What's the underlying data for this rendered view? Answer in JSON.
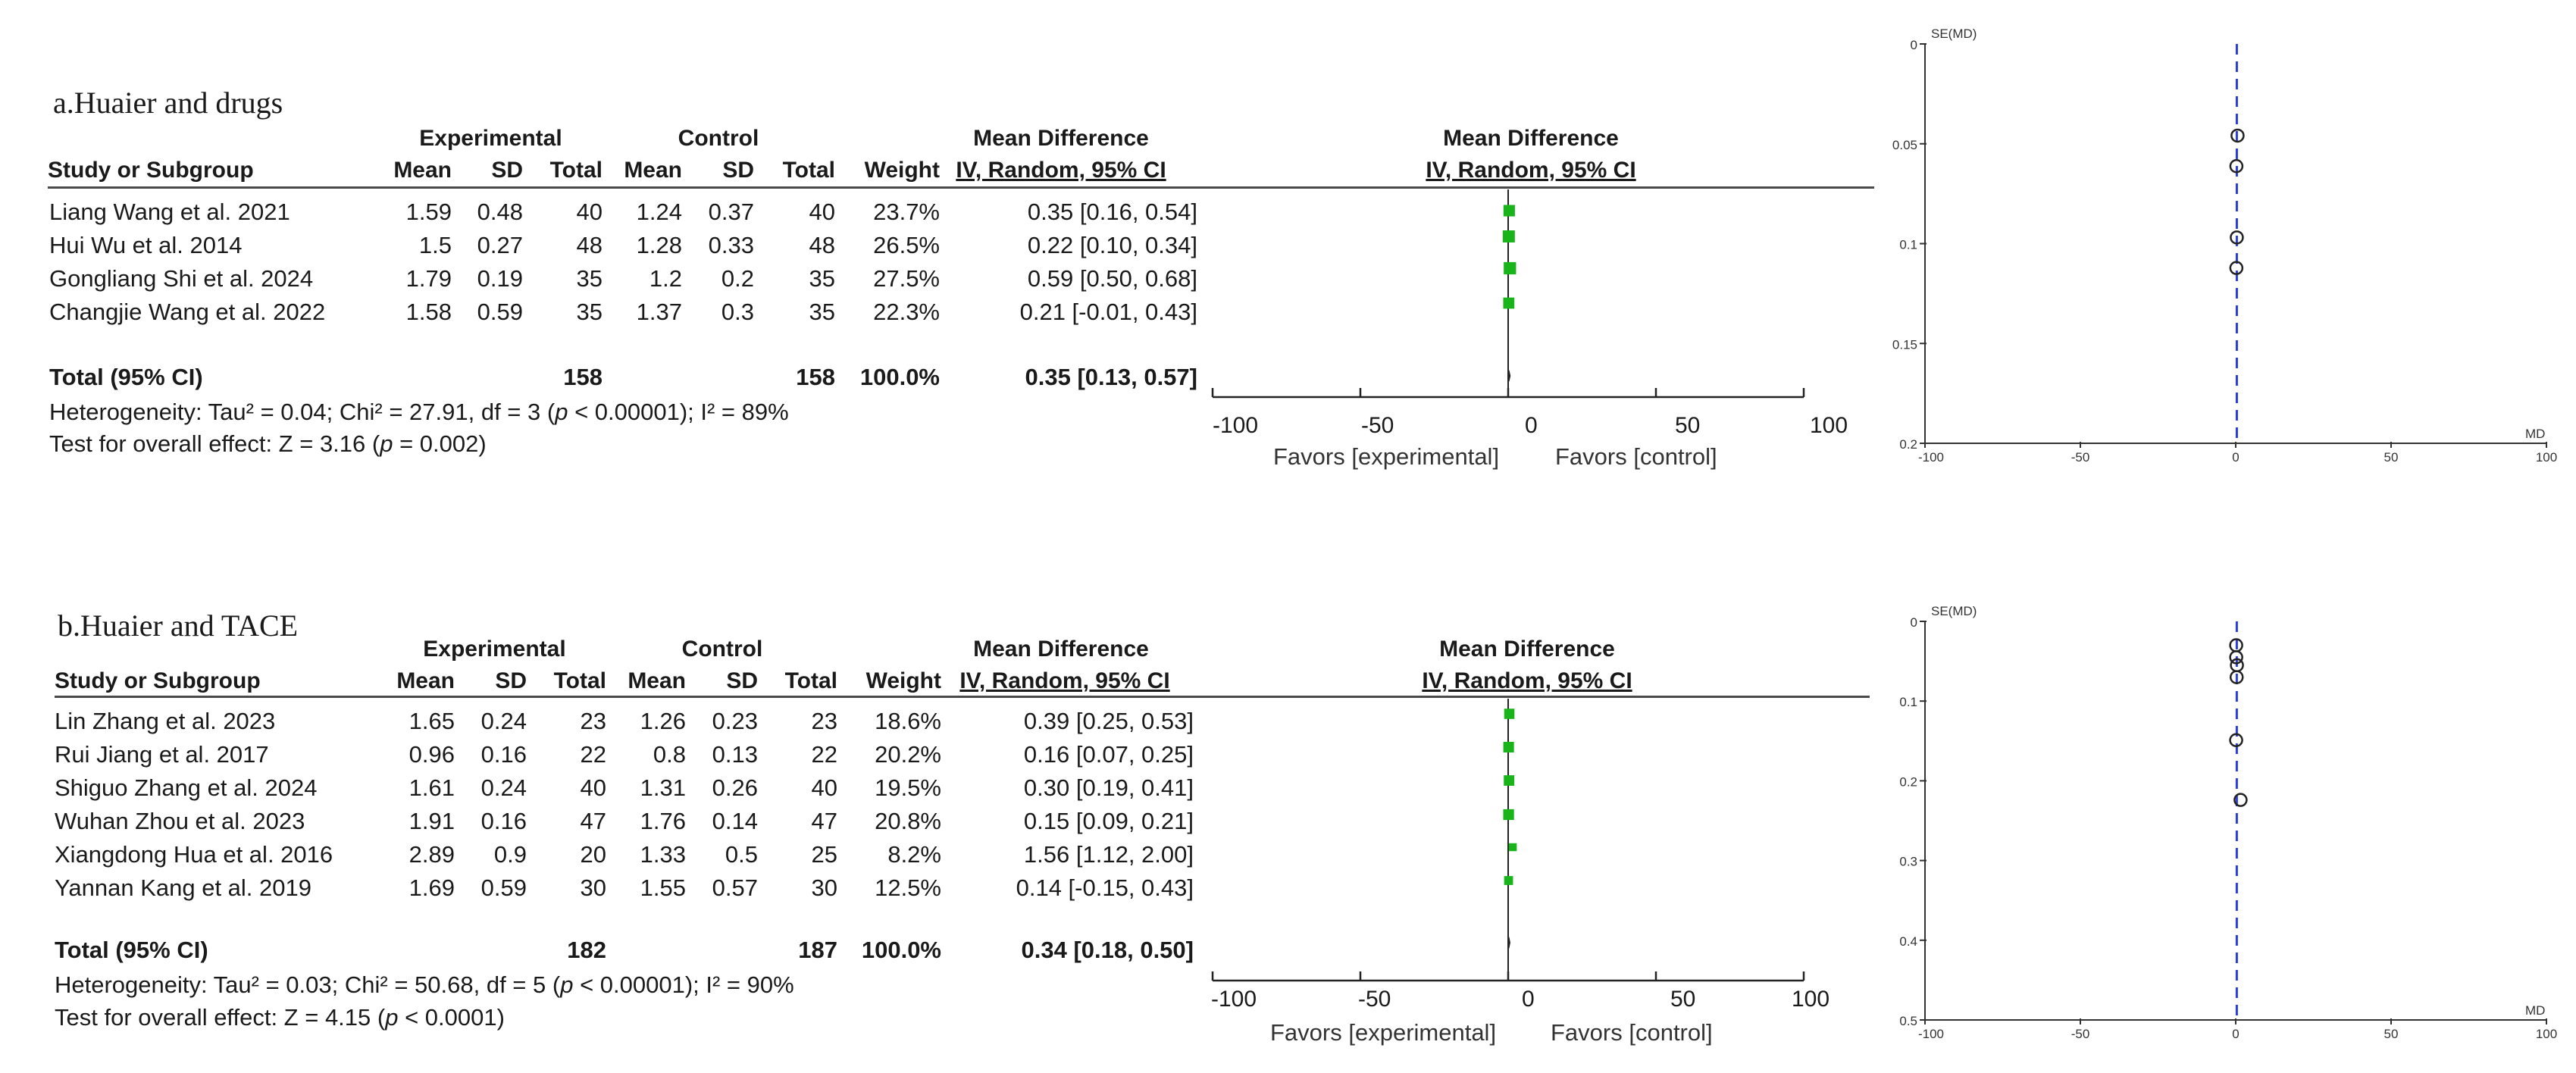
{
  "panels": [
    {
      "title": "a.Huaier and drugs",
      "headers": {
        "group_exp": "Experimental",
        "group_ctl": "Control",
        "group_md": "Mean Difference",
        "group_md_plot": "Mean Difference",
        "study": "Study or Subgroup",
        "mean": "Mean",
        "sd": "SD",
        "total": "Total",
        "weight": "Weight",
        "ci_method": "IV, Random, 95% CI",
        "ci_method_plot": "IV, Random, 95% CI"
      },
      "rows": [
        {
          "study": "Liang Wang et al. 2021",
          "e_mean": "1.59",
          "e_sd": "0.48",
          "e_total": "40",
          "c_mean": "1.24",
          "c_sd": "0.37",
          "c_total": "40",
          "weight": "23.7%",
          "ci": "0.35 [0.16, 0.54]"
        },
        {
          "study": "Hui Wu et al. 2014",
          "e_mean": "1.5",
          "e_sd": "0.27",
          "e_total": "48",
          "c_mean": "1.28",
          "c_sd": "0.33",
          "c_total": "48",
          "weight": "26.5%",
          "ci": "0.22 [0.10, 0.34]"
        },
        {
          "study": "Gongliang Shi et al. 2024",
          "e_mean": "1.79",
          "e_sd": "0.19",
          "e_total": "35",
          "c_mean": "1.2",
          "c_sd": "0.2",
          "c_total": "35",
          "weight": "27.5%",
          "ci": "0.59 [0.50, 0.68]"
        },
        {
          "study": "Changjie Wang et al. 2022",
          "e_mean": "1.58",
          "e_sd": "0.59",
          "e_total": "35",
          "c_mean": "1.37",
          "c_sd": "0.3",
          "c_total": "35",
          "weight": "22.3%",
          "ci": "0.21 [-0.01, 0.43]"
        }
      ],
      "total": {
        "label": "Total (95% CI)",
        "e_total": "158",
        "c_total": "158",
        "weight": "100.0%",
        "ci": "0.35 [0.13, 0.57]"
      },
      "heterogeneity": {
        "prefix": "Heterogeneity: Tau² = 0.04; Chi² = 27.91, df = 3 (",
        "p": "p",
        "suffix": " < 0.00001); I² = 89%"
      },
      "overall": {
        "prefix": "Test for overall effect: Z = 3.16 (",
        "p": "p",
        "suffix": " = 0.002)"
      },
      "axis_ticks": [
        "-100",
        "-50",
        "0",
        "50",
        "100"
      ],
      "favors_left": "Favors [experimental]",
      "favors_right": "Favors [control]"
    },
    {
      "title": "b.Huaier and TACE",
      "headers": {
        "group_exp": "Experimental",
        "group_ctl": "Control",
        "group_md": "Mean Difference",
        "group_md_plot": "Mean Difference",
        "study": "Study or Subgroup",
        "mean": "Mean",
        "sd": "SD",
        "total": "Total",
        "weight": "Weight",
        "ci_method": "IV, Random, 95% CI",
        "ci_method_plot": "IV, Random, 95% CI"
      },
      "rows": [
        {
          "study": "Lin Zhang et al. 2023",
          "e_mean": "1.65",
          "e_sd": "0.24",
          "e_total": "23",
          "c_mean": "1.26",
          "c_sd": "0.23",
          "c_total": "23",
          "weight": "18.6%",
          "ci": "0.39 [0.25, 0.53]"
        },
        {
          "study": "Rui Jiang et al. 2017",
          "e_mean": "0.96",
          "e_sd": "0.16",
          "e_total": "22",
          "c_mean": "0.8",
          "c_sd": "0.13",
          "c_total": "22",
          "weight": "20.2%",
          "ci": "0.16 [0.07, 0.25]"
        },
        {
          "study": "Shiguo Zhang et al. 2024",
          "e_mean": "1.61",
          "e_sd": "0.24",
          "e_total": "40",
          "c_mean": "1.31",
          "c_sd": "0.26",
          "c_total": "40",
          "weight": "19.5%",
          "ci": "0.30 [0.19, 0.41]"
        },
        {
          "study": "Wuhan Zhou et al. 2023",
          "e_mean": "1.91",
          "e_sd": "0.16",
          "e_total": "47",
          "c_mean": "1.76",
          "c_sd": "0.14",
          "c_total": "47",
          "weight": "20.8%",
          "ci": "0.15 [0.09, 0.21]"
        },
        {
          "study": "Xiangdong Hua et al. 2016",
          "e_mean": "2.89",
          "e_sd": "0.9",
          "e_total": "20",
          "c_mean": "1.33",
          "c_sd": "0.5",
          "c_total": "25",
          "weight": "8.2%",
          "ci": "1.56 [1.12, 2.00]"
        },
        {
          "study": "Yannan Kang et al. 2019",
          "e_mean": "1.69",
          "e_sd": "0.59",
          "e_total": "30",
          "c_mean": "1.55",
          "c_sd": "0.57",
          "c_total": "30",
          "weight": "12.5%",
          "ci": "0.14 [-0.15, 0.43]"
        }
      ],
      "total": {
        "label": "Total (95% CI)",
        "e_total": "182",
        "c_total": "187",
        "weight": "100.0%",
        "ci": "0.34 [0.18, 0.50]"
      },
      "heterogeneity": {
        "prefix": "Heterogeneity: Tau² = 0.03; Chi² = 50.68, df = 5 (",
        "p": "p",
        "suffix": " < 0.00001); I² = 90%"
      },
      "overall": {
        "prefix": "Test for overall effect: Z = 4.15 (",
        "p": "p",
        "suffix": " < 0.0001)"
      },
      "axis_ticks": [
        "-100",
        "-50",
        "0",
        "50",
        "100"
      ],
      "favors_left": "Favors [experimental]",
      "favors_right": "Favors [control]"
    }
  ],
  "chart_data": [
    {
      "type": "scatter",
      "subtype": "forest",
      "title": "a.Huaier and drugs",
      "xlabel": "Mean Difference IV, Random, 95% CI",
      "xlim": [
        -100,
        100
      ],
      "x_ticks": [
        -100,
        -50,
        0,
        50,
        100
      ],
      "series": [
        {
          "name": "studies",
          "md": [
            0.35,
            0.22,
            0.59,
            0.21
          ],
          "ci_low": [
            0.16,
            0.1,
            0.5,
            -0.01
          ],
          "ci_high": [
            0.54,
            0.34,
            0.68,
            0.43
          ],
          "weight": [
            23.7,
            26.5,
            27.5,
            22.3
          ]
        }
      ],
      "pooled": {
        "md": 0.35,
        "ci": [
          0.13,
          0.57
        ]
      },
      "colors": {
        "marker": "#19b419",
        "axis": "#222222"
      }
    },
    {
      "type": "scatter",
      "subtype": "forest",
      "title": "b.Huaier and TACE",
      "xlabel": "Mean Difference IV, Random, 95% CI",
      "xlim": [
        -100,
        100
      ],
      "x_ticks": [
        -100,
        -50,
        0,
        50,
        100
      ],
      "series": [
        {
          "name": "studies",
          "md": [
            0.39,
            0.16,
            0.3,
            0.15,
            1.56,
            0.14
          ],
          "ci_low": [
            0.25,
            0.07,
            0.19,
            0.09,
            1.12,
            -0.15
          ],
          "ci_high": [
            0.53,
            0.25,
            0.41,
            0.21,
            2.0,
            0.43
          ],
          "weight": [
            18.6,
            20.2,
            19.5,
            20.8,
            8.2,
            12.5
          ]
        }
      ],
      "pooled": {
        "md": 0.34,
        "ci": [
          0.18,
          0.5
        ]
      },
      "colors": {
        "marker": "#19b419",
        "axis": "#222222"
      }
    },
    {
      "type": "scatter",
      "subtype": "funnel",
      "xlabel": "MD",
      "ylabel": "SE(MD)",
      "xlim": [
        -100,
        100
      ],
      "ylim": [
        0,
        0.2
      ],
      "x_tick_labels": [
        "-100",
        "-50",
        "0",
        "50",
        "100"
      ],
      "y_tick_labels": [
        "0",
        "0.05",
        "0.1",
        "0.15",
        "0.2"
      ],
      "x": [
        0.22,
        0.35,
        0.59,
        0.21
      ],
      "y": [
        0.0612,
        0.0969,
        0.0459,
        0.1122
      ],
      "pooled_md": 0.35,
      "colors": {
        "reference_line": "#2b3fd6",
        "point": "#222222"
      }
    },
    {
      "type": "scatter",
      "subtype": "funnel",
      "xlabel": "MD",
      "ylabel": "SE(MD)",
      "xlim": [
        -100,
        100
      ],
      "ylim": [
        0,
        0.5
      ],
      "x_tick_labels": [
        "-100",
        "-50",
        "0",
        "50",
        "100"
      ],
      "y_tick_labels": [
        "0",
        "0.1",
        "0.2",
        "0.3",
        "0.4",
        "0.5"
      ],
      "x": [
        0.15,
        0.16,
        0.39,
        0.3,
        0.14,
        1.56
      ],
      "y": [
        0.03,
        0.045,
        0.055,
        0.07,
        0.149,
        0.224
      ],
      "pooled_md": 0.34,
      "colors": {
        "reference_line": "#2b3fd6",
        "point": "#222222"
      }
    }
  ]
}
